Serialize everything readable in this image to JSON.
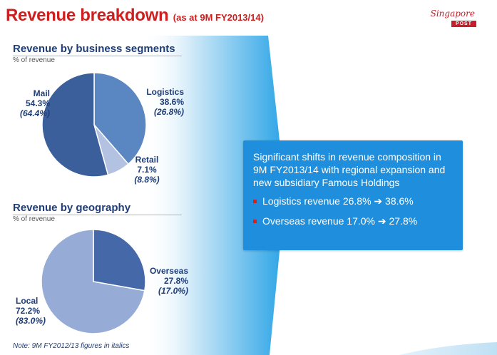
{
  "header": {
    "title": "Revenue breakdown",
    "subtitle": "(as at 9M FY2013/14)",
    "logo_script": "Singapore",
    "logo_badge": "POST"
  },
  "colors": {
    "title_red": "#cc1f1f",
    "navy": "#1f3d77",
    "callout_blue": "#1f8fdd",
    "bullet_red": "#d42020",
    "mail": "#3b5f9a",
    "logistics": "#5a86c2",
    "retail": "#b2c2e0",
    "overseas": "#4468a8",
    "local": "#96acd6"
  },
  "chart_data": [
    {
      "type": "pie",
      "title": "Revenue by business segments",
      "subtitle": "% of revenue",
      "slices": [
        {
          "name": "Logistics",
          "value": 38.6,
          "prior": 26.8,
          "value_label": "38.6%",
          "prior_label": "(26.8%)",
          "color": "#5a86c2"
        },
        {
          "name": "Retail",
          "value": 7.1,
          "prior": 8.8,
          "value_label": "7.1%",
          "prior_label": "(8.8%)",
          "color": "#b2c2e0"
        },
        {
          "name": "Mail",
          "value": 54.3,
          "prior": 64.4,
          "value_label": "54.3%",
          "prior_label": "(64.4%)",
          "color": "#3b5f9a"
        }
      ]
    },
    {
      "type": "pie",
      "title": "Revenue by geography",
      "subtitle": "% of revenue",
      "slices": [
        {
          "name": "Overseas",
          "value": 27.8,
          "prior": 17.0,
          "value_label": "27.8%",
          "prior_label": "(17.0%)",
          "color": "#4468a8"
        },
        {
          "name": "Local",
          "value": 72.2,
          "prior": 83.0,
          "value_label": "72.2%",
          "prior_label": "(83.0%)",
          "color": "#96acd6"
        }
      ]
    }
  ],
  "callout": {
    "headline": "Significant shifts in revenue composition in 9M FY2013/14 with regional expansion and new subsidiary Famous Holdings",
    "bullets": [
      "Logistics revenue 26.8% ➔ 38.6%",
      "Overseas revenue 17.0% ➔ 27.8%"
    ]
  },
  "note": "Note: 9M FY2012/13 figures in italics"
}
